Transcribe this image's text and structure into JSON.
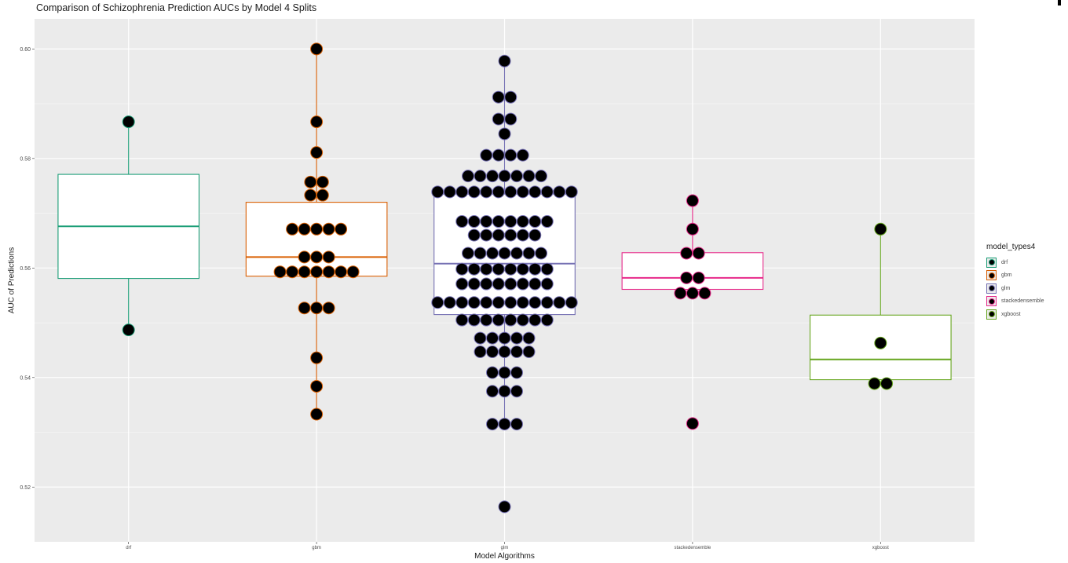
{
  "chart_data": {
    "type": "box",
    "title": "Comparison of Schizophrenia Prediction AUCs by Model 4 Splits",
    "xlabel": "Model Algorithms",
    "ylabel": "AUC of Predictions",
    "ylim": [
      0.51,
      0.6055
    ],
    "y_ticks": [
      0.52,
      0.54,
      0.56,
      0.58,
      0.6
    ],
    "y_tick_labels": [
      "0.52",
      "0.54",
      "0.56",
      "0.58",
      "0.60"
    ],
    "grid": true,
    "legend_position": "right",
    "legend_title": "model_types4",
    "categories": [
      "drf",
      "gbm",
      "glm",
      "stackedensemble",
      "xgboost"
    ],
    "series": [
      {
        "name": "drf",
        "color": "#1b9e77",
        "box": {
          "whisker_low": 0.5487,
          "q1": 0.5581,
          "median": 0.5676,
          "q3": 0.5771,
          "whisker_high": 0.5867
        },
        "points": [
          0.5867,
          0.5487
        ]
      },
      {
        "name": "gbm",
        "color": "#d95f02",
        "box": {
          "whisker_low": 0.5333,
          "q1": 0.5585,
          "median": 0.562,
          "q3": 0.572,
          "whisker_high": 0.6
        },
        "points": [
          0.6,
          0.5867,
          0.5811,
          0.5757,
          0.5757,
          0.5733,
          0.5733,
          0.5671,
          0.5671,
          0.5671,
          0.5671,
          0.5671,
          0.562,
          0.562,
          0.562,
          0.5593,
          0.5593,
          0.5593,
          0.5593,
          0.5593,
          0.5593,
          0.5593,
          0.5527,
          0.5527,
          0.5527,
          0.5436,
          0.5384,
          0.5333
        ]
      },
      {
        "name": "glm",
        "color": "#7570b3",
        "box": {
          "whisker_low": 0.5315,
          "q1": 0.5515,
          "median": 0.5608,
          "q3": 0.5735,
          "whisker_high": 0.5978
        },
        "points": [
          0.5978,
          0.5912,
          0.5912,
          0.5872,
          0.5872,
          0.5845,
          0.5806,
          0.5806,
          0.5806,
          0.5806,
          0.5768,
          0.5768,
          0.5768,
          0.5768,
          0.5768,
          0.5768,
          0.5768,
          0.5739,
          0.5739,
          0.5739,
          0.5739,
          0.5739,
          0.5739,
          0.5739,
          0.5739,
          0.5739,
          0.5739,
          0.5739,
          0.5739,
          0.5685,
          0.5685,
          0.5685,
          0.5685,
          0.5685,
          0.5685,
          0.5685,
          0.5685,
          0.566,
          0.566,
          0.566,
          0.566,
          0.566,
          0.566,
          0.5627,
          0.5627,
          0.5627,
          0.5627,
          0.5627,
          0.5627,
          0.5627,
          0.5598,
          0.5598,
          0.5598,
          0.5598,
          0.5598,
          0.5598,
          0.5598,
          0.5598,
          0.5571,
          0.5571,
          0.5571,
          0.5571,
          0.5571,
          0.5571,
          0.5571,
          0.5571,
          0.5537,
          0.5537,
          0.5537,
          0.5537,
          0.5537,
          0.5537,
          0.5537,
          0.5537,
          0.5537,
          0.5537,
          0.5537,
          0.5537,
          0.5505,
          0.5505,
          0.5505,
          0.5505,
          0.5505,
          0.5505,
          0.5505,
          0.5505,
          0.5472,
          0.5472,
          0.5472,
          0.5472,
          0.5472,
          0.5447,
          0.5447,
          0.5447,
          0.5447,
          0.5447,
          0.5409,
          0.5409,
          0.5409,
          0.5375,
          0.5375,
          0.5375,
          0.5315,
          0.5315,
          0.5315,
          0.5164
        ]
      },
      {
        "name": "stackedensemble",
        "color": "#e7298a",
        "box": {
          "whisker_low": 0.5561,
          "q1": 0.5561,
          "median": 0.5582,
          "q3": 0.5628,
          "whisker_high": 0.5723
        },
        "points": [
          0.5723,
          0.5671,
          0.5627,
          0.5627,
          0.5582,
          0.5582,
          0.5554,
          0.5554,
          0.5554,
          0.5316
        ]
      },
      {
        "name": "xgboost",
        "color": "#66a61e",
        "box": {
          "whisker_low": 0.5396,
          "q1": 0.5396,
          "median": 0.5433,
          "q3": 0.5514,
          "whisker_high": 0.5671
        },
        "points": [
          0.5671,
          0.5463,
          0.5389,
          0.5389
        ]
      }
    ]
  }
}
